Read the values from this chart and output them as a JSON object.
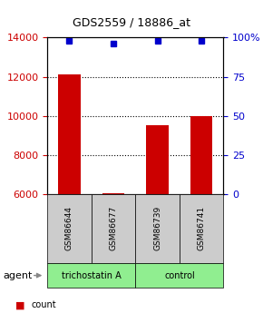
{
  "title": "GDS2559 / 18886_at",
  "samples": [
    "GSM86644",
    "GSM86677",
    "GSM86739",
    "GSM86741"
  ],
  "counts": [
    12100,
    6050,
    9500,
    10000
  ],
  "percentile_ranks": [
    98,
    96,
    98,
    98
  ],
  "groups": [
    "trichostatin A",
    "trichostatin A",
    "control",
    "control"
  ],
  "group_colors": {
    "trichostatin A": "#90EE90",
    "control": "#90EE90"
  },
  "bar_color": "#CC0000",
  "dot_color": "#0000CC",
  "ymin": 6000,
  "ymax": 14000,
  "yticks": [
    6000,
    8000,
    10000,
    12000,
    14000
  ],
  "right_yticks": [
    0,
    25,
    50,
    75,
    100
  ],
  "right_yticklabels": [
    "0",
    "25",
    "50",
    "75",
    "100%"
  ],
  "xlabel_color_left": "#CC0000",
  "xlabel_color_right": "#0000CC",
  "legend_count_color": "#CC0000",
  "legend_dot_color": "#0000CC",
  "bg_color": "#ffffff",
  "grid_color": "#000000",
  "sample_box_color": "#CCCCCC",
  "group_row_colors": [
    "#90EE90",
    "#90EE90"
  ],
  "agent_label": "agent"
}
